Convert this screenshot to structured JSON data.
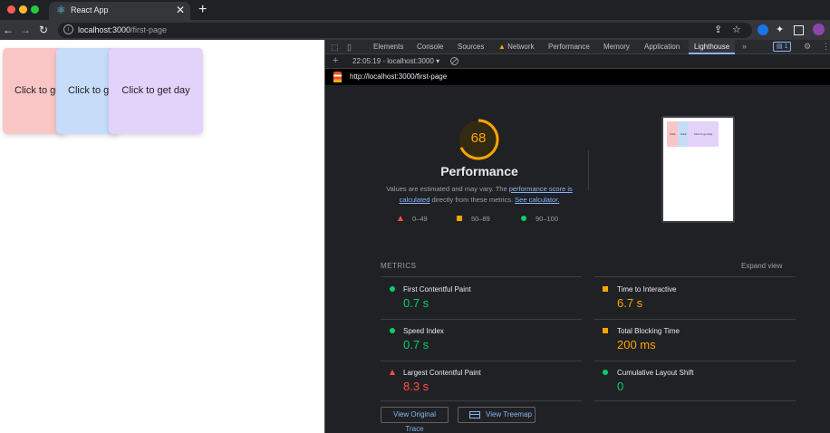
{
  "browser": {
    "tab_title": "React App",
    "tab_close": "✕",
    "new_tab": "+",
    "nav_back": "←",
    "nav_forward": "→",
    "nav_reload": "↻",
    "address_host": "localhost:3000",
    "address_path": "/first-page",
    "info_icon": "i",
    "share_icon": "⇪",
    "star_icon": "☆",
    "puzzle_icon": "✦"
  },
  "page": {
    "cards": [
      {
        "label": "Click to get day",
        "color": "#f9c6c6"
      },
      {
        "label": "Click to get day",
        "color": "#c6dcf9"
      },
      {
        "label": "Click to get day",
        "color": "#e3d3fb"
      }
    ]
  },
  "devtools": {
    "tabs": [
      "Elements",
      "Console",
      "Sources",
      "Network",
      "Performance",
      "Memory",
      "Application",
      "Lighthouse"
    ],
    "active_tab": "Lighthouse",
    "more_tabs": "»",
    "issues_badge": "1",
    "report_selector": "22:05:19 - localhost:3000 ▾",
    "new_report": "+",
    "tested_url": "http://localhost:3000/first-page"
  },
  "lighthouse": {
    "score": "68",
    "score_fraction": 0.68,
    "score_color": "#ffa400",
    "category_title": "Performance",
    "desc_before": "Values are estimated and may vary. The ",
    "desc_link1": "performance score is calculated",
    "desc_middle": " directly from these metrics. ",
    "desc_link2": "See calculator.",
    "legend": [
      {
        "range": "0–49",
        "shape": "triangle",
        "color": "#ff4e42"
      },
      {
        "range": "50–89",
        "shape": "square",
        "color": "#ffa400"
      },
      {
        "range": "90–100",
        "shape": "circle",
        "color": "#0cce6b"
      }
    ],
    "screenshot_cards": [
      "Click",
      "Click",
      "Click to get day"
    ],
    "metrics_title": "METRICS",
    "expand_view": "Expand view",
    "metrics": [
      {
        "label": "First Contentful Paint",
        "value": "0.7 s",
        "rating": "good"
      },
      {
        "label": "Time to Interactive",
        "value": "6.7 s",
        "rating": "average"
      },
      {
        "label": "Speed Index",
        "value": "0.7 s",
        "rating": "good"
      },
      {
        "label": "Total Blocking Time",
        "value": "200 ms",
        "rating": "average"
      },
      {
        "label": "Largest Contentful Paint",
        "value": "8.3 s",
        "rating": "fail"
      },
      {
        "label": "Cumulative Layout Shift",
        "value": "0",
        "rating": "good"
      }
    ],
    "buttons": {
      "view_trace": "View Original Trace",
      "view_treemap": "View Treemap"
    }
  }
}
